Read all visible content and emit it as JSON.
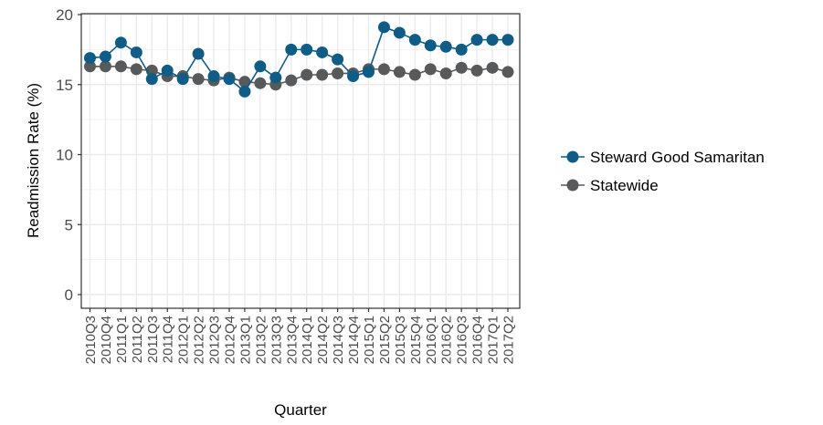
{
  "chart_data": {
    "type": "line",
    "title": "",
    "xlabel": "Quarter",
    "ylabel": "Readmission Rate (%)",
    "ylim": [
      0,
      20
    ],
    "yticks": [
      0,
      5,
      10,
      15,
      20
    ],
    "grid": true,
    "legend_position": "right",
    "categories": [
      "2010Q3",
      "2010Q4",
      "2011Q1",
      "2011Q2",
      "2011Q3",
      "2011Q4",
      "2012Q1",
      "2012Q2",
      "2012Q3",
      "2012Q4",
      "2013Q1",
      "2013Q2",
      "2013Q3",
      "2013Q4",
      "2014Q1",
      "2014Q2",
      "2014Q3",
      "2014Q4",
      "2015Q1",
      "2015Q2",
      "2015Q3",
      "2015Q4",
      "2016Q1",
      "2016Q2",
      "2016Q3",
      "2016Q4",
      "2017Q1",
      "2017Q2"
    ],
    "series": [
      {
        "name": "Steward Good Samaritan",
        "color": "#0f5c86",
        "values": [
          16.9,
          17.0,
          18.0,
          17.3,
          15.4,
          16.0,
          15.4,
          17.2,
          15.6,
          15.4,
          14.5,
          16.3,
          15.5,
          17.5,
          17.5,
          17.3,
          16.8,
          15.6,
          15.9,
          19.1,
          18.7,
          18.2,
          17.8,
          17.7,
          17.5,
          18.2,
          18.2,
          18.2
        ]
      },
      {
        "name": "Statewide",
        "color": "#58595b",
        "values": [
          16.3,
          16.3,
          16.3,
          16.1,
          16.0,
          15.6,
          15.6,
          15.4,
          15.3,
          15.5,
          15.2,
          15.1,
          15.0,
          15.3,
          15.7,
          15.7,
          15.8,
          15.8,
          16.1,
          16.1,
          15.9,
          15.7,
          16.1,
          15.8,
          16.2,
          16.0,
          16.2,
          15.9
        ]
      }
    ]
  }
}
